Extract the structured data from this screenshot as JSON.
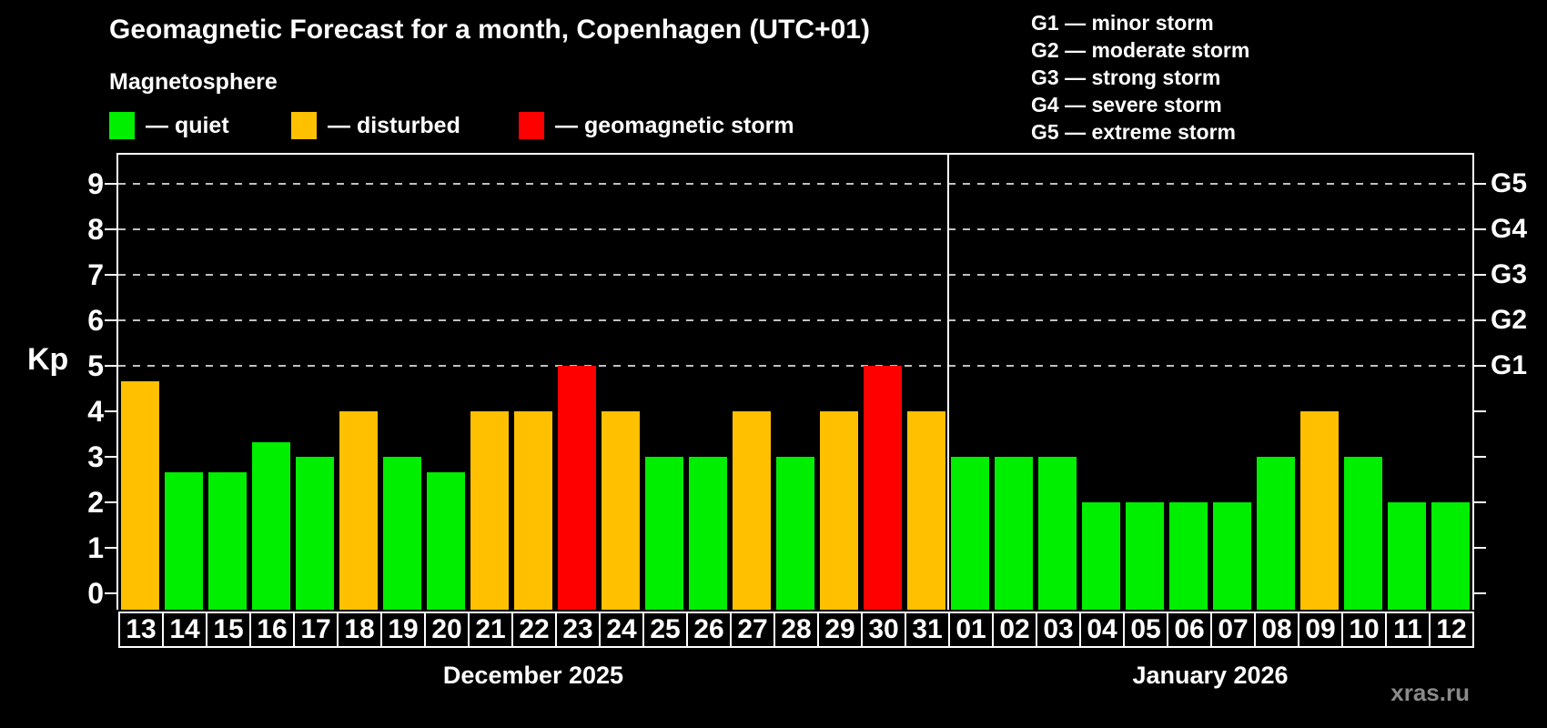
{
  "title": "Geomagnetic Forecast for a month, Copenhagen (UTC+01)",
  "subtitle": "Magnetosphere",
  "legend": {
    "items": [
      {
        "key": "quiet",
        "label": "— quiet",
        "color": "#00ee00"
      },
      {
        "key": "disturbed",
        "label": "— disturbed",
        "color": "#ffc000"
      },
      {
        "key": "storm",
        "label": "— geomagnetic storm",
        "color": "#ff0000"
      }
    ]
  },
  "storm_legend": [
    "G1 — minor storm",
    "G2 — moderate storm",
    "G3 — strong storm",
    "G4 — severe storm",
    "G5 — extreme storm"
  ],
  "watermark": "xras.ru",
  "chart_data": {
    "type": "bar",
    "title": "Geomagnetic Forecast for a month, Copenhagen (UTC+01)",
    "xlabel": "",
    "ylabel": "Kp",
    "ylim": [
      0,
      9.6
    ],
    "yticks": [
      0,
      1,
      2,
      3,
      4,
      5,
      6,
      7,
      8,
      9
    ],
    "gridlines_at": [
      5,
      6,
      7,
      8,
      9
    ],
    "grid": "dashed-horizontal-top-half-only",
    "legend_position": "top-left",
    "right_axis_labels": [
      {
        "value": 5,
        "label": "G1"
      },
      {
        "value": 6,
        "label": "G2"
      },
      {
        "value": 7,
        "label": "G3"
      },
      {
        "value": 8,
        "label": "G4"
      },
      {
        "value": 9,
        "label": "G5"
      }
    ],
    "months": [
      {
        "label": "December 2025",
        "days": 19
      },
      {
        "label": "January 2026",
        "days": 12
      }
    ],
    "categories": [
      "13",
      "14",
      "15",
      "16",
      "17",
      "18",
      "19",
      "20",
      "21",
      "22",
      "23",
      "24",
      "25",
      "26",
      "27",
      "28",
      "29",
      "30",
      "31",
      "01",
      "02",
      "03",
      "04",
      "05",
      "06",
      "07",
      "08",
      "09",
      "10",
      "11",
      "12"
    ],
    "values": [
      4.67,
      2.67,
      2.67,
      3.33,
      3,
      4,
      3,
      2.67,
      4,
      4,
      5,
      4,
      3,
      3,
      4,
      3,
      4,
      5,
      4,
      3,
      3,
      3,
      2,
      2,
      2,
      2,
      3,
      4,
      3,
      2,
      2
    ],
    "statuses": [
      "disturbed",
      "quiet",
      "quiet",
      "quiet",
      "quiet",
      "disturbed",
      "quiet",
      "quiet",
      "disturbed",
      "disturbed",
      "storm",
      "disturbed",
      "quiet",
      "quiet",
      "disturbed",
      "quiet",
      "disturbed",
      "storm",
      "disturbed",
      "quiet",
      "quiet",
      "quiet",
      "quiet",
      "quiet",
      "quiet",
      "quiet",
      "quiet",
      "disturbed",
      "quiet",
      "quiet",
      "quiet"
    ],
    "colors": {
      "quiet": "#00ee00",
      "disturbed": "#ffc000",
      "storm": "#ff0000",
      "grid": "#c0c0c0",
      "axis": "#ffffff",
      "watermark": "#8a8a8a"
    }
  }
}
